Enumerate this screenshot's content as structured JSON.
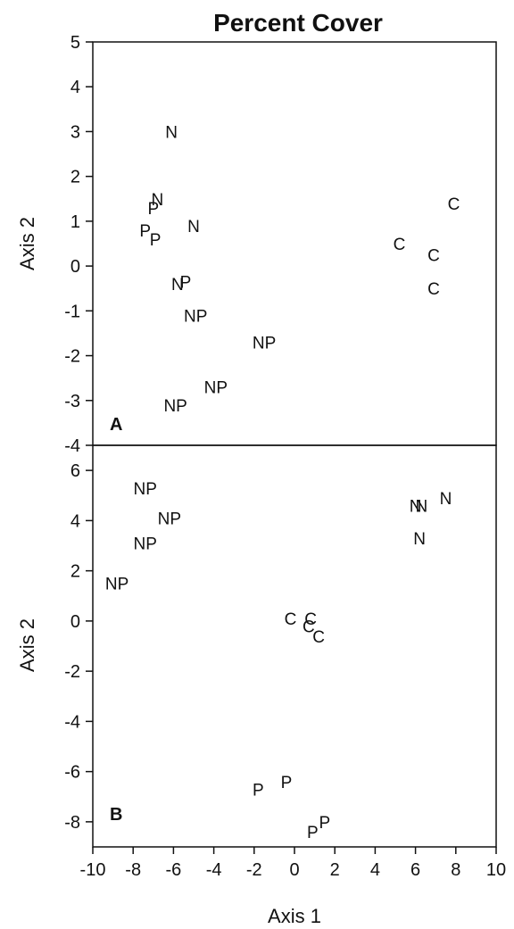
{
  "chart_data": [
    {
      "type": "scatter",
      "panel_label": "A",
      "title": "Percent Cover",
      "xlabel": "",
      "ylabel": "Axis 2",
      "xlim": [
        -10,
        10
      ],
      "ylim": [
        -4,
        5
      ],
      "yticks": [
        -4,
        -3,
        -2,
        -1,
        0,
        1,
        2,
        3,
        4,
        5
      ],
      "points": [
        {
          "label": "N",
          "x": -6.1,
          "y": 3.0
        },
        {
          "label": "N",
          "x": -6.8,
          "y": 1.5
        },
        {
          "label": "P",
          "x": -7.0,
          "y": 1.3
        },
        {
          "label": "N",
          "x": -5.0,
          "y": 0.9
        },
        {
          "label": "P",
          "x": -7.4,
          "y": 0.8
        },
        {
          "label": "P",
          "x": -6.9,
          "y": 0.6
        },
        {
          "label": "N",
          "x": -5.8,
          "y": -0.4
        },
        {
          "label": "P",
          "x": -5.4,
          "y": -0.35
        },
        {
          "label": "NP",
          "x": -4.9,
          "y": -1.1
        },
        {
          "label": "NP",
          "x": -1.5,
          "y": -1.7
        },
        {
          "label": "NP",
          "x": -3.9,
          "y": -2.7
        },
        {
          "label": "NP",
          "x": -5.9,
          "y": -3.1
        },
        {
          "label": "C",
          "x": 7.9,
          "y": 1.4
        },
        {
          "label": "C",
          "x": 5.2,
          "y": 0.5
        },
        {
          "label": "C",
          "x": 6.9,
          "y": 0.25
        },
        {
          "label": "C",
          "x": 6.9,
          "y": -0.5
        }
      ]
    },
    {
      "type": "scatter",
      "panel_label": "B",
      "title": "",
      "xlabel": "Axis 1",
      "ylabel": "Axis 2",
      "xlim": [
        -10,
        10
      ],
      "ylim": [
        -9,
        7
      ],
      "xticks": [
        -10,
        -8,
        -6,
        -4,
        -2,
        0,
        2,
        4,
        6,
        8,
        10
      ],
      "yticks": [
        -8,
        -6,
        -4,
        -2,
        0,
        2,
        4,
        6
      ],
      "points": [
        {
          "label": "NP",
          "x": -7.4,
          "y": 5.3
        },
        {
          "label": "NP",
          "x": -6.2,
          "y": 4.1
        },
        {
          "label": "NP",
          "x": -7.4,
          "y": 3.1
        },
        {
          "label": "NP",
          "x": -8.8,
          "y": 1.5
        },
        {
          "label": "N",
          "x": 6.0,
          "y": 4.6
        },
        {
          "label": "N",
          "x": 6.3,
          "y": 4.6
        },
        {
          "label": "N",
          "x": 7.5,
          "y": 4.9
        },
        {
          "label": "N",
          "x": 6.2,
          "y": 3.3
        },
        {
          "label": "C",
          "x": -0.2,
          "y": 0.1
        },
        {
          "label": "C",
          "x": 0.8,
          "y": 0.1
        },
        {
          "label": "C",
          "x": 0.7,
          "y": -0.2
        },
        {
          "label": "C",
          "x": 1.2,
          "y": -0.6
        },
        {
          "label": "P",
          "x": -1.8,
          "y": -6.7
        },
        {
          "label": "P",
          "x": -0.4,
          "y": -6.4
        },
        {
          "label": "P",
          "x": 1.5,
          "y": -8.0
        },
        {
          "label": "P",
          "x": 0.9,
          "y": -8.4
        }
      ]
    }
  ]
}
